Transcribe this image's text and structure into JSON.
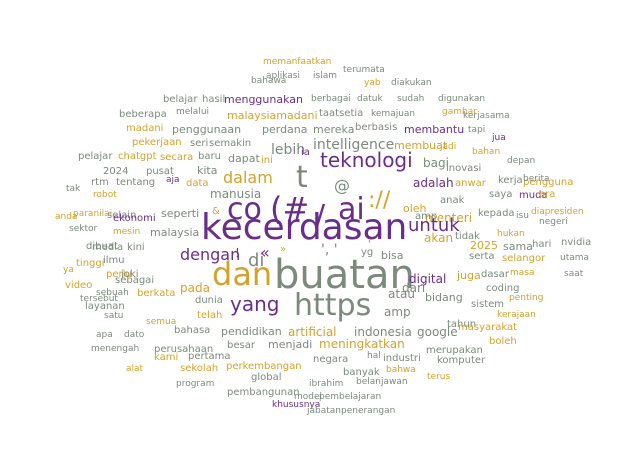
{
  "colors": {
    "purple": "#6b2d8a",
    "gold": "#d4a22b",
    "gray": "#7b8a7b"
  },
  "words": [
    "memanfaatkan",
    "terumata",
    "bahawa",
    "aplikasi",
    "islam",
    "yab",
    "diakukan",
    "belajar",
    "hasil",
    "menggunakan",
    "berbagai",
    "datuk",
    "sudah",
    "digunakan",
    "beberapa",
    "melalui",
    "malaysiamadani",
    "taatsetia",
    "kemajuan",
    "gambar",
    "kerjasama",
    "madani",
    "penggunaan",
    "perdana",
    "mereka",
    "berbasis",
    "membantu",
    "tapi",
    "jua",
    "pekerjaan",
    "seri",
    "semakin",
    "membuat",
    "jadi",
    "bahan",
    "pelajar",
    "chatgpt",
    "secara",
    "baru",
    "dapat",
    "ini",
    "lebih",
    "intelligence",
    "ia",
    "depan",
    "teknologi",
    "bagi",
    "2024",
    "pusat",
    "kita",
    "dalam",
    "inovasi",
    "rtm",
    "tentang",
    "aja",
    "data",
    "manusia",
    "t",
    "adalah",
    "anwar",
    "kerja",
    "pengguna",
    "tak",
    "robot",
    "co",
    "ai",
    "anak",
    "saya",
    "muda",
    "era",
    "paranilai",
    "selain",
    "ekonomi",
    "seperti",
    "oleh",
    "menteri",
    "kepada",
    "isu",
    "diapresiden",
    "anda",
    "sektor",
    "mesin",
    "malaysia",
    "kecerdasan",
    "negeri",
    "untuk",
    "dibuat",
    "media",
    "kini",
    "dengan",
    "akan",
    "tidak",
    "hukan",
    "hari",
    "nvidia",
    "ya",
    "tinggi",
    "ilmu",
    "di",
    "yg",
    "bisa",
    "2025",
    "sama",
    "utama",
    "video",
    "perlu",
    "joki",
    "dan",
    "buatan",
    "serta",
    "selangor",
    "masa",
    "tersebut",
    "sebagai",
    "berkata",
    "pada",
    "dari",
    "digital",
    "juga",
    "dasar",
    "saat",
    "sebuah",
    "https",
    "atau",
    "bidang",
    "coding",
    "penting",
    "layanan",
    "dunia",
    "yang",
    "telah",
    "amp",
    "sistem",
    "satu",
    "semua",
    "apa",
    "dato",
    "bahasa",
    "pendidikan",
    "artificial",
    "indonesia",
    "google",
    "tahun",
    "kerajaan",
    "menengah",
    "perusahaan",
    "besar",
    "menjadi",
    "meningkatkan",
    "masyarakat",
    "boleh",
    "kami",
    "pertama",
    "merupakan",
    "alat",
    "sekolah",
    "negara",
    "industri",
    "komputer",
    "perkembangan",
    "hal",
    "bahwa",
    "global",
    "program",
    "ibrahim",
    "banyak",
    "belanjawan",
    "terus",
    "pembangunan",
    "model",
    "pembelajaran",
    "khususnya",
    "jabatanpenerangan",
    "berita",
    "amp"
  ],
  "symbols": [
    "(#",
    "/",
    "://",
    "@",
    "&",
    "«",
    "»",
    "!",
    "', '",
    "'"
  ]
}
